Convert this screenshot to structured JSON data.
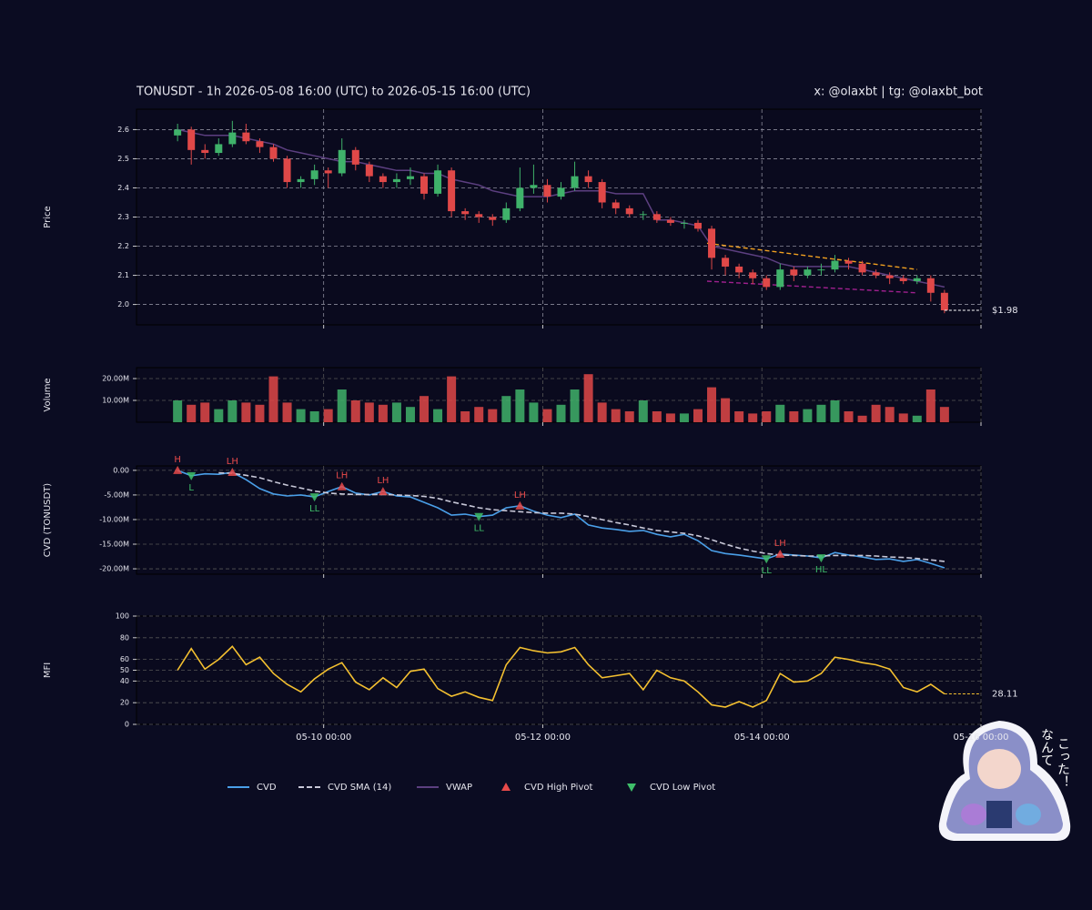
{
  "chart_data": [
    {
      "type": "candlestick",
      "title": "TONUSDT - 1h 2026-05-08 16:00 (UTC) to 2026-05-15 16:00 (UTC)",
      "subtitle": "x: @olaxbt | tg: @olaxbt_bot",
      "ylabel": "Price",
      "x": [
        "05-08 16:00",
        "05-08 19:00",
        "05-08 22:00",
        "05-09 01:00",
        "05-09 04:00",
        "05-09 07:00",
        "05-09 10:00",
        "05-09 13:00",
        "05-09 16:00",
        "05-09 19:00",
        "05-09 22:00",
        "05-10 01:00",
        "05-10 04:00",
        "05-10 07:00",
        "05-10 10:00",
        "05-10 13:00",
        "05-10 16:00",
        "05-10 19:00",
        "05-10 22:00",
        "05-11 01:00",
        "05-11 04:00",
        "05-11 07:00",
        "05-11 10:00",
        "05-11 13:00",
        "05-11 16:00",
        "05-11 19:00",
        "05-11 22:00",
        "05-12 01:00",
        "05-12 04:00",
        "05-12 07:00",
        "05-12 10:00",
        "05-12 13:00",
        "05-12 16:00",
        "05-12 19:00",
        "05-12 22:00",
        "05-13 01:00",
        "05-13 04:00",
        "05-13 07:00",
        "05-13 10:00",
        "05-13 13:00",
        "05-13 16:00",
        "05-13 19:00",
        "05-13 22:00",
        "05-14 01:00",
        "05-14 04:00",
        "05-14 07:00",
        "05-14 10:00",
        "05-14 13:00",
        "05-14 16:00",
        "05-14 19:00",
        "05-14 22:00",
        "05-15 01:00",
        "05-15 04:00",
        "05-15 07:00",
        "05-15 10:00",
        "05-15 13:00",
        "05-15 16:00"
      ],
      "open": [
        2.58,
        2.6,
        2.53,
        2.52,
        2.55,
        2.59,
        2.56,
        2.54,
        2.5,
        2.42,
        2.43,
        2.46,
        2.45,
        2.53,
        2.48,
        2.44,
        2.42,
        2.43,
        2.44,
        2.38,
        2.46,
        2.32,
        2.31,
        2.3,
        2.29,
        2.33,
        2.4,
        2.41,
        2.37,
        2.4,
        2.44,
        2.42,
        2.35,
        2.33,
        2.31,
        2.31,
        2.29,
        2.28,
        2.28,
        2.26,
        2.16,
        2.13,
        2.11,
        2.09,
        2.06,
        2.12,
        2.1,
        2.12,
        2.12,
        2.15,
        2.14,
        2.11,
        2.1,
        2.09,
        2.08,
        2.09,
        2.04
      ],
      "high": [
        2.62,
        2.61,
        2.55,
        2.57,
        2.63,
        2.62,
        2.57,
        2.55,
        2.51,
        2.44,
        2.48,
        2.47,
        2.57,
        2.54,
        2.49,
        2.45,
        2.45,
        2.47,
        2.45,
        2.48,
        2.47,
        2.33,
        2.32,
        2.31,
        2.35,
        2.47,
        2.48,
        2.43,
        2.42,
        2.49,
        2.46,
        2.43,
        2.36,
        2.34,
        2.32,
        2.32,
        2.3,
        2.29,
        2.29,
        2.27,
        2.17,
        2.14,
        2.12,
        2.1,
        2.14,
        2.13,
        2.13,
        2.14,
        2.17,
        2.16,
        2.15,
        2.12,
        2.11,
        2.1,
        2.1,
        2.1,
        2.05
      ],
      "low": [
        2.56,
        2.48,
        2.5,
        2.51,
        2.54,
        2.55,
        2.52,
        2.49,
        2.4,
        2.4,
        2.41,
        2.4,
        2.44,
        2.46,
        2.42,
        2.4,
        2.4,
        2.41,
        2.36,
        2.37,
        2.3,
        2.29,
        2.28,
        2.27,
        2.28,
        2.32,
        2.38,
        2.35,
        2.36,
        2.39,
        2.4,
        2.33,
        2.31,
        2.3,
        2.29,
        2.28,
        2.27,
        2.26,
        2.25,
        2.12,
        2.1,
        2.09,
        2.07,
        2.05,
        2.05,
        2.08,
        2.09,
        2.1,
        2.11,
        2.12,
        2.1,
        2.09,
        2.07,
        2.07,
        2.07,
        2.01,
        1.97
      ],
      "close": [
        2.6,
        2.53,
        2.52,
        2.55,
        2.59,
        2.56,
        2.54,
        2.5,
        2.42,
        2.43,
        2.46,
        2.45,
        2.53,
        2.48,
        2.44,
        2.42,
        2.43,
        2.44,
        2.38,
        2.46,
        2.32,
        2.31,
        2.3,
        2.29,
        2.33,
        2.4,
        2.41,
        2.37,
        2.4,
        2.44,
        2.42,
        2.35,
        2.33,
        2.31,
        2.31,
        2.29,
        2.28,
        2.28,
        2.26,
        2.16,
        2.13,
        2.11,
        2.09,
        2.06,
        2.12,
        2.1,
        2.12,
        2.12,
        2.15,
        2.14,
        2.11,
        2.1,
        2.09,
        2.08,
        2.09,
        2.04,
        1.98
      ],
      "up_color": "#3fb26a",
      "down_color": "#e04848",
      "overlay": {
        "name": "VWAP",
        "color": "#5c3f80",
        "values": [
          2.6,
          2.59,
          2.58,
          2.58,
          2.58,
          2.57,
          2.56,
          2.55,
          2.53,
          2.52,
          2.51,
          2.5,
          2.49,
          2.49,
          2.48,
          2.47,
          2.46,
          2.46,
          2.45,
          2.45,
          2.43,
          2.42,
          2.41,
          2.39,
          2.38,
          2.37,
          2.37,
          2.37,
          2.38,
          2.39,
          2.39,
          2.39,
          2.38,
          2.38,
          2.38,
          2.29,
          2.29,
          2.28,
          2.27,
          2.2,
          2.19,
          2.18,
          2.17,
          2.16,
          2.14,
          2.13,
          2.13,
          2.13,
          2.13,
          2.13,
          2.12,
          2.11,
          2.1,
          2.09,
          2.08,
          2.07,
          2.06
        ]
      },
      "trendlines": [
        {
          "x": [
            "05-13 12:00",
            "05-15 10:00"
          ],
          "values": [
            2.21,
            2.12
          ],
          "color": "#f0a020"
        },
        {
          "x": [
            "05-13 12:00",
            "05-15 10:00"
          ],
          "values": [
            2.08,
            2.04
          ],
          "color": "#a0208f"
        }
      ],
      "last_label": "$1.98",
      "xlim": [
        "05-08 07:00",
        "05-16 00:00"
      ],
      "ylim": [
        1.93,
        2.67
      ],
      "yticks": [
        {
          "value": 2,
          "label": "2.0"
        },
        2.1,
        2.2,
        2.3,
        2.4,
        2.5,
        2.6
      ],
      "grid": true
    },
    {
      "type": "bar",
      "ylabel": "Volume",
      "values": [
        10000000,
        8000000,
        9000000,
        6000000,
        10000000,
        9000000,
        8000000,
        21000000,
        9000000,
        6000000,
        5000000,
        6000000,
        15000000,
        10000000,
        9000000,
        8000000,
        9000000,
        7000000,
        12000000,
        6000000,
        21000000,
        5000000,
        7000000,
        6000000,
        12000000,
        15000000,
        9000000,
        6000000,
        8000000,
        15000000,
        22000000,
        9000000,
        6000000,
        5000000,
        10000000,
        5000000,
        4000000,
        4000000,
        6000000,
        16000000,
        11000000,
        5000000,
        4000000,
        5000000,
        8000000,
        5000000,
        6000000,
        8000000,
        10000000,
        5000000,
        3000000,
        8000000,
        7000000,
        4000000,
        3000000,
        15000000,
        7000000
      ],
      "xlim": [
        "05-08 07:00",
        "05-16 00:00"
      ],
      "ylim": [
        0,
        25000000
      ],
      "yticks": [
        {
          "value": 10000000,
          "label": "10.00M"
        },
        {
          "value": 20000000,
          "label": "20.00M"
        }
      ],
      "grid": true
    },
    {
      "type": "line",
      "ylabel": "CVD (TONUSDT)",
      "series": [
        {
          "name": "CVD",
          "color": "#4a9fe8",
          "values": [
            0,
            -1100000,
            -700000,
            -800000,
            -400000,
            -1900000,
            -3700000,
            -4800000,
            -5200000,
            -5000000,
            -5400000,
            -4300000,
            -3300000,
            -4600000,
            -5000000,
            -4300000,
            -5200000,
            -5400000,
            -6500000,
            -7600000,
            -9100000,
            -8900000,
            -9400000,
            -9100000,
            -7600000,
            -7200000,
            -8300000,
            -9100000,
            -9600000,
            -8900000,
            -11100000,
            -11700000,
            -12000000,
            -12400000,
            -12200000,
            -13000000,
            -13500000,
            -13000000,
            -14300000,
            -16300000,
            -16900000,
            -17200000,
            -17600000,
            -18000000,
            -17000000,
            -17200000,
            -17400000,
            -17800000,
            -16700000,
            -17200000,
            -17600000,
            -18100000,
            -18000000,
            -18500000,
            -18100000,
            -18900000,
            -19800000
          ]
        },
        {
          "name": "CVD SMA (14)",
          "color": "#c8c8d8",
          "dash": true,
          "values": [
            null,
            null,
            null,
            -500000,
            -600000,
            -1000000,
            -1500000,
            -2300000,
            -3000000,
            -3600000,
            -4200000,
            -4600000,
            -4800000,
            -4900000,
            -4900000,
            -4900000,
            -5000000,
            -5100000,
            -5300000,
            -5700000,
            -6400000,
            -7000000,
            -7600000,
            -8000000,
            -8200000,
            -8400000,
            -8600000,
            -8700000,
            -8700000,
            -8900000,
            -9400000,
            -10000000,
            -10600000,
            -11100000,
            -11700000,
            -12200000,
            -12500000,
            -12800000,
            -13300000,
            -14100000,
            -15000000,
            -15800000,
            -16400000,
            -16900000,
            -17200000,
            -17300000,
            -17400000,
            -17400000,
            -17300000,
            -17300000,
            -17300000,
            -17400000,
            -17600000,
            -17700000,
            -17900000,
            -18200000,
            -18500000
          ]
        }
      ],
      "markers": [
        {
          "name": "CVD High Pivot",
          "color": "#e84a4a",
          "shape": "up",
          "x": [
            "05-08 16:00",
            "05-09 04:00",
            "05-10 04:00",
            "05-10 13:00",
            "05-11 19:00",
            "05-14 04:00"
          ],
          "values": [
            0,
            -400000,
            -3300000,
            -4300000,
            -7200000,
            -17000000
          ],
          "labels": [
            "H",
            "LH",
            "LH",
            "LH",
            "LH",
            "LH"
          ]
        },
        {
          "name": "CVD Low Pivot",
          "color": "#3fbf6a",
          "shape": "down",
          "x": [
            "05-08 19:00",
            "05-09 22:00",
            "05-11 10:00",
            "05-14 01:00",
            "05-14 13:00"
          ],
          "values": [
            -1100000,
            -5400000,
            -9400000,
            -18000000,
            -17800000
          ],
          "labels": [
            "L",
            "LL",
            "LL",
            "LL",
            "HL"
          ]
        }
      ],
      "xlim": [
        "05-08 07:00",
        "05-16 00:00"
      ],
      "ylim": [
        -21100000,
        900000
      ],
      "yticks": [
        {
          "value": 0,
          "label": "0.00"
        },
        {
          "value": -5000000,
          "label": "-5.00M"
        },
        {
          "value": -10000000,
          "label": "-10.00M"
        },
        {
          "value": -15000000,
          "label": "-15.00M"
        },
        {
          "value": -20000000,
          "label": "-20.00M"
        }
      ],
      "grid": true
    },
    {
      "type": "line",
      "ylabel": "MFI",
      "series": [
        {
          "color": "#f4c030",
          "last_value_marker": true,
          "values": [
            50,
            70,
            51,
            60,
            72,
            55,
            62,
            47,
            37,
            30,
            42,
            51,
            57,
            39,
            32,
            43,
            34,
            49,
            51,
            33,
            26,
            30,
            25,
            22,
            55,
            71,
            68,
            66,
            67,
            71,
            55,
            43,
            45,
            47,
            32,
            50,
            43,
            40,
            30,
            18,
            16,
            21,
            16,
            22,
            47,
            39,
            40,
            47,
            62,
            60,
            57,
            55,
            51,
            34,
            30,
            37,
            28.11
          ]
        }
      ],
      "xlim": [
        "05-08 07:00",
        "05-16 00:00"
      ],
      "xticks": [
        "05-10 00:00",
        "05-12 00:00",
        "05-14 00:00",
        "05-16 00:00"
      ],
      "ylim": [
        0,
        100
      ],
      "yticks": [
        0,
        20,
        40,
        50,
        60,
        80,
        100
      ],
      "grid": true
    }
  ],
  "sticker": {
    "lines": [
      "なんて",
      "こった！"
    ]
  }
}
